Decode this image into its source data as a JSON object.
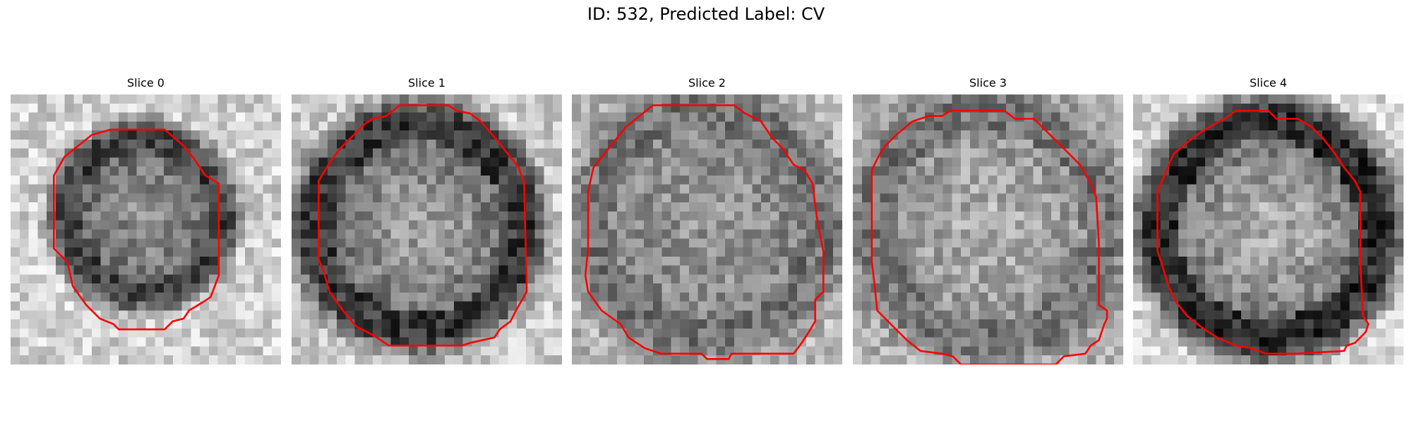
{
  "title": "ID: 532, Predicted Label: CV",
  "contour_color": "#ff0000",
  "slices": [
    {
      "label": "Slice 0",
      "seed": 11,
      "center": [
        0.49,
        0.45
      ],
      "radius": 0.3,
      "inner_gray": 0.55,
      "rim_gray": 0.25,
      "outer_gray": 0.82,
      "contour": [
        [
          0.37,
          0.13
        ],
        [
          0.57,
          0.13
        ],
        [
          0.64,
          0.19
        ],
        [
          0.68,
          0.24
        ],
        [
          0.72,
          0.3
        ],
        [
          0.77,
          0.33
        ],
        [
          0.77,
          0.67
        ],
        [
          0.74,
          0.75
        ],
        [
          0.71,
          0.77
        ],
        [
          0.66,
          0.8
        ],
        [
          0.64,
          0.83
        ],
        [
          0.6,
          0.84
        ],
        [
          0.57,
          0.87
        ],
        [
          0.4,
          0.87
        ],
        [
          0.38,
          0.85
        ],
        [
          0.33,
          0.83
        ],
        [
          0.28,
          0.78
        ],
        [
          0.23,
          0.71
        ],
        [
          0.21,
          0.62
        ],
        [
          0.18,
          0.59
        ],
        [
          0.16,
          0.57
        ],
        [
          0.16,
          0.3
        ],
        [
          0.2,
          0.23
        ],
        [
          0.25,
          0.19
        ],
        [
          0.3,
          0.15
        ]
      ]
    },
    {
      "label": "Slice 1",
      "seed": 23,
      "center": [
        0.47,
        0.49
      ],
      "radius": 0.4,
      "inner_gray": 0.62,
      "rim_gray": 0.22,
      "outer_gray": 0.8,
      "contour": [
        [
          0.4,
          0.04
        ],
        [
          0.58,
          0.04
        ],
        [
          0.61,
          0.06
        ],
        [
          0.66,
          0.07
        ],
        [
          0.7,
          0.1
        ],
        [
          0.76,
          0.17
        ],
        [
          0.8,
          0.22
        ],
        [
          0.84,
          0.27
        ],
        [
          0.86,
          0.33
        ],
        [
          0.87,
          0.73
        ],
        [
          0.83,
          0.8
        ],
        [
          0.81,
          0.84
        ],
        [
          0.77,
          0.87
        ],
        [
          0.75,
          0.9
        ],
        [
          0.66,
          0.92
        ],
        [
          0.63,
          0.93
        ],
        [
          0.36,
          0.93
        ],
        [
          0.33,
          0.91
        ],
        [
          0.3,
          0.89
        ],
        [
          0.24,
          0.86
        ],
        [
          0.19,
          0.8
        ],
        [
          0.14,
          0.73
        ],
        [
          0.12,
          0.66
        ],
        [
          0.1,
          0.61
        ],
        [
          0.1,
          0.32
        ],
        [
          0.13,
          0.27
        ],
        [
          0.15,
          0.24
        ],
        [
          0.18,
          0.2
        ],
        [
          0.23,
          0.15
        ],
        [
          0.27,
          0.11
        ],
        [
          0.3,
          0.09
        ],
        [
          0.35,
          0.08
        ]
      ]
    },
    {
      "label": "Slice 2",
      "seed": 37,
      "center": [
        0.5,
        0.48
      ],
      "radius": 0.44,
      "inner_gray": 0.58,
      "rim_gray": 0.45,
      "outer_gray": 0.72,
      "contour": [
        [
          0.3,
          0.04
        ],
        [
          0.6,
          0.04
        ],
        [
          0.64,
          0.07
        ],
        [
          0.7,
          0.1
        ],
        [
          0.74,
          0.16
        ],
        [
          0.78,
          0.2
        ],
        [
          0.82,
          0.26
        ],
        [
          0.86,
          0.28
        ],
        [
          0.89,
          0.33
        ],
        [
          0.9,
          0.41
        ],
        [
          0.91,
          0.48
        ],
        [
          0.93,
          0.58
        ],
        [
          0.93,
          0.73
        ],
        [
          0.9,
          0.76
        ],
        [
          0.9,
          0.84
        ],
        [
          0.87,
          0.89
        ],
        [
          0.85,
          0.92
        ],
        [
          0.82,
          0.96
        ],
        [
          0.59,
          0.96
        ],
        [
          0.58,
          0.98
        ],
        [
          0.5,
          0.98
        ],
        [
          0.48,
          0.96
        ],
        [
          0.33,
          0.96
        ],
        [
          0.27,
          0.94
        ],
        [
          0.24,
          0.92
        ],
        [
          0.21,
          0.9
        ],
        [
          0.18,
          0.85
        ],
        [
          0.11,
          0.8
        ],
        [
          0.06,
          0.73
        ],
        [
          0.05,
          0.67
        ],
        [
          0.06,
          0.57
        ],
        [
          0.06,
          0.36
        ],
        [
          0.08,
          0.27
        ],
        [
          0.12,
          0.22
        ],
        [
          0.16,
          0.17
        ],
        [
          0.2,
          0.12
        ],
        [
          0.25,
          0.08
        ]
      ]
    },
    {
      "label": "Slice 3",
      "seed": 53,
      "center": [
        0.5,
        0.49
      ],
      "radius": 0.44,
      "inner_gray": 0.68,
      "rim_gray": 0.45,
      "outer_gray": 0.7,
      "contour": [
        [
          0.36,
          0.06
        ],
        [
          0.56,
          0.06
        ],
        [
          0.6,
          0.09
        ],
        [
          0.67,
          0.09
        ],
        [
          0.73,
          0.15
        ],
        [
          0.78,
          0.2
        ],
        [
          0.84,
          0.26
        ],
        [
          0.88,
          0.33
        ],
        [
          0.9,
          0.38
        ],
        [
          0.91,
          0.55
        ],
        [
          0.91,
          0.64
        ],
        [
          0.91,
          0.78
        ],
        [
          0.94,
          0.8
        ],
        [
          0.94,
          0.83
        ],
        [
          0.93,
          0.85
        ],
        [
          0.91,
          0.91
        ],
        [
          0.88,
          0.93
        ],
        [
          0.86,
          0.96
        ],
        [
          0.78,
          0.97
        ],
        [
          0.75,
          1.0
        ],
        [
          0.72,
          1.0
        ],
        [
          0.4,
          1.0
        ],
        [
          0.37,
          0.97
        ],
        [
          0.33,
          0.96
        ],
        [
          0.25,
          0.95
        ],
        [
          0.2,
          0.91
        ],
        [
          0.15,
          0.86
        ],
        [
          0.09,
          0.8
        ],
        [
          0.08,
          0.7
        ],
        [
          0.07,
          0.62
        ],
        [
          0.07,
          0.28
        ],
        [
          0.1,
          0.22
        ],
        [
          0.12,
          0.19
        ],
        [
          0.16,
          0.15
        ],
        [
          0.22,
          0.1
        ],
        [
          0.28,
          0.08
        ],
        [
          0.33,
          0.08
        ]
      ]
    },
    {
      "label": "Slice 4",
      "seed": 71,
      "center": [
        0.5,
        0.5
      ],
      "radius": 0.42,
      "inner_gray": 0.68,
      "rim_gray": 0.18,
      "outer_gray": 0.84,
      "contour": [
        [
          0.38,
          0.06
        ],
        [
          0.5,
          0.06
        ],
        [
          0.53,
          0.09
        ],
        [
          0.61,
          0.09
        ],
        [
          0.66,
          0.12
        ],
        [
          0.7,
          0.16
        ],
        [
          0.74,
          0.21
        ],
        [
          0.78,
          0.27
        ],
        [
          0.82,
          0.32
        ],
        [
          0.84,
          0.36
        ],
        [
          0.84,
          0.62
        ],
        [
          0.85,
          0.82
        ],
        [
          0.87,
          0.85
        ],
        [
          0.86,
          0.88
        ],
        [
          0.82,
          0.92
        ],
        [
          0.79,
          0.93
        ],
        [
          0.78,
          0.95
        ],
        [
          0.6,
          0.96
        ],
        [
          0.49,
          0.96
        ],
        [
          0.44,
          0.94
        ],
        [
          0.38,
          0.93
        ],
        [
          0.31,
          0.9
        ],
        [
          0.25,
          0.86
        ],
        [
          0.2,
          0.82
        ],
        [
          0.16,
          0.77
        ],
        [
          0.13,
          0.71
        ],
        [
          0.11,
          0.64
        ],
        [
          0.09,
          0.58
        ],
        [
          0.09,
          0.36
        ],
        [
          0.12,
          0.29
        ],
        [
          0.15,
          0.22
        ],
        [
          0.21,
          0.17
        ],
        [
          0.25,
          0.14
        ],
        [
          0.3,
          0.11
        ],
        [
          0.34,
          0.09
        ]
      ]
    }
  ]
}
